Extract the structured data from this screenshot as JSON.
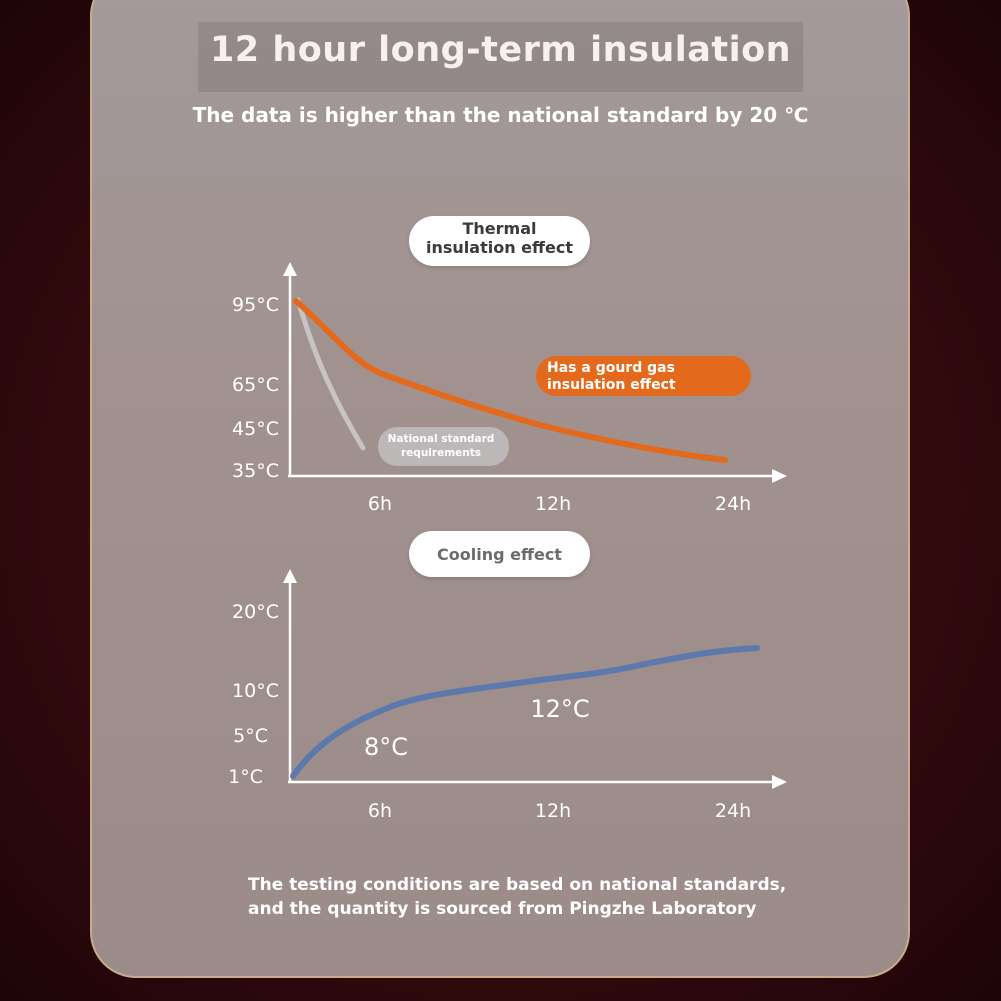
{
  "header": {
    "title": "12 hour long-term insulation",
    "subtitle": "The data is higher than the national standard by 20 ℃"
  },
  "footnote": {
    "line1": "The testing conditions are based on national standards,",
    "line2": "and the quantity is sourced from Pingzhe Laboratory"
  },
  "colors": {
    "orange": "#e36a1c",
    "gray_line": "#c9c4c4",
    "blue": "#5b79ad"
  },
  "chart_data": [
    {
      "type": "line",
      "title_lines": [
        "Thermal",
        "insulation effect"
      ],
      "x_ticks": [
        "6h",
        "12h",
        "24h"
      ],
      "y_ticks": [
        "95°C",
        "65°C",
        "45°C",
        "35°C"
      ],
      "series": [
        {
          "name_lines": [
            "Has a gourd gas",
            "insulation effect"
          ],
          "color": "#e36a1c",
          "x": [
            "0h",
            "2h",
            "4h",
            "6h",
            "9h",
            "12h",
            "18h",
            "24h"
          ],
          "y": [
            95,
            82,
            70,
            65,
            59,
            54,
            46,
            38
          ]
        },
        {
          "name_lines": [
            "National standard",
            "requirements"
          ],
          "color": "#c9c4c4",
          "x": [
            "0h",
            "1h",
            "2h",
            "3h"
          ],
          "y": [
            95,
            78,
            58,
            42
          ]
        }
      ],
      "grid": false
    },
    {
      "type": "line",
      "title": "Cooling effect",
      "x_ticks": [
        "6h",
        "12h",
        "24h"
      ],
      "y_ticks": [
        "20°C",
        "10°C",
        "5°C",
        "1°C"
      ],
      "series": [
        {
          "color": "#5b79ad",
          "x": [
            "0h",
            "3h",
            "6h",
            "9h",
            "12h",
            "18h",
            "24h"
          ],
          "y": [
            1,
            4.5,
            8,
            10,
            12,
            13,
            15
          ]
        }
      ],
      "annotations": [
        "8°C",
        "12°C"
      ],
      "grid": false
    }
  ]
}
